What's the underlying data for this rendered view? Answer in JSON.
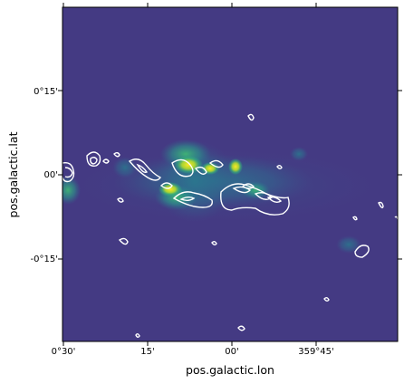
{
  "chart_data": {
    "type": "heatmap",
    "title": "",
    "xlabel": "pos.galactic.lon",
    "ylabel": "pos.galactic.lat",
    "xlim": [
      "0°30'",
      "359°30'"
    ],
    "ylim": [
      "-0°30'",
      "0°30'"
    ],
    "x_ticks": [
      "0°30'",
      "15'",
      "00'",
      "359°45'"
    ],
    "y_ticks": [
      "0°15'",
      "00'",
      "-0°15'"
    ],
    "colormap": "viridis",
    "image_description_values": {
      "background_color": "#443a83",
      "peak_color": "#fde725"
    },
    "grid": false,
    "legend": "none",
    "overlay": "white contours"
  },
  "colors": {
    "background": "#443a83",
    "contour": "#ffffff",
    "hot": "#fde725"
  }
}
